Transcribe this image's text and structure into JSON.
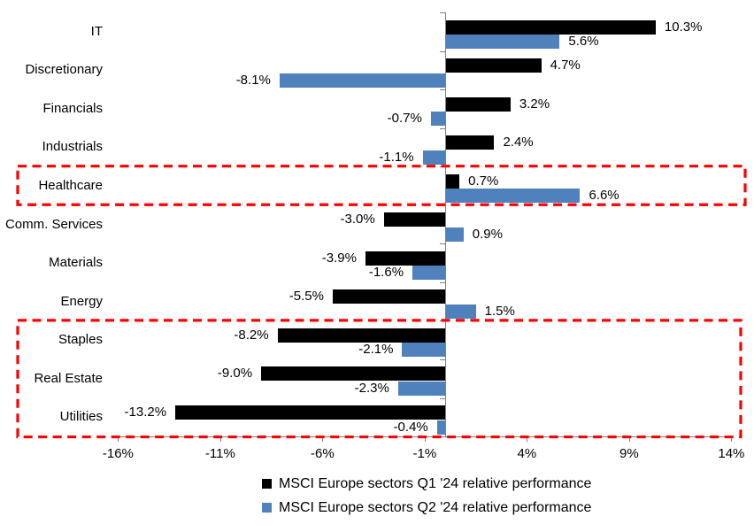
{
  "chart_data": {
    "type": "bar",
    "orientation": "horizontal",
    "title": "",
    "categories": [
      "IT",
      "Discretionary",
      "Financials",
      "Industrials",
      "Healthcare",
      "Comm. Services",
      "Materials",
      "Energy",
      "Staples",
      "Real Estate",
      "Utilities"
    ],
    "series": [
      {
        "name": "MSCI Europe sectors Q1 '24 relative performance",
        "color": "#000000",
        "values": [
          10.3,
          4.7,
          3.2,
          2.4,
          0.7,
          -3.0,
          -3.9,
          -5.5,
          -8.2,
          -9.0,
          -13.2
        ],
        "labels": [
          "10.3%",
          "4.7%",
          "3.2%",
          "2.4%",
          "0.7%",
          "-3.0%",
          "-3.9%",
          "-5.5%",
          "-8.2%",
          "-9.0%",
          "-13.2%"
        ]
      },
      {
        "name": "MSCI Europe sectors Q2 '24 relative performance",
        "color": "#4F81BD",
        "values": [
          5.6,
          -8.1,
          -0.7,
          -1.1,
          6.6,
          0.9,
          -1.6,
          1.5,
          -2.1,
          -2.3,
          -0.4
        ],
        "labels": [
          "5.6%",
          "-8.1%",
          "-0.7%",
          "-1.1%",
          "6.6%",
          "0.9%",
          "-1.6%",
          "1.5%",
          "-2.1%",
          "-2.3%",
          "-0.4%"
        ]
      }
    ],
    "x_axis": {
      "min": -16,
      "max": 14,
      "tick_step": 5,
      "tick_values": [
        -16,
        -11,
        -6,
        -1,
        4,
        9,
        14
      ],
      "tick_labels": [
        "-16%",
        "-11%",
        "-6%",
        "-1%",
        "4%",
        "9%",
        "14%"
      ]
    },
    "grid": false,
    "value_labels_visible": true,
    "legend_position": "bottom",
    "axis_color": "#808080",
    "highlights": [
      {
        "name": "healthcare-highlight-box",
        "sectors": [
          "Healthcare"
        ],
        "row_start": 4,
        "row_end": 4,
        "color": "#FF0000",
        "style": "dashed"
      },
      {
        "name": "defensive-sectors-highlight-box",
        "sectors": [
          "Staples",
          "Real Estate",
          "Utilities"
        ],
        "row_start": 8,
        "row_end": 10,
        "color": "#FF0000",
        "style": "dashed"
      }
    ]
  }
}
